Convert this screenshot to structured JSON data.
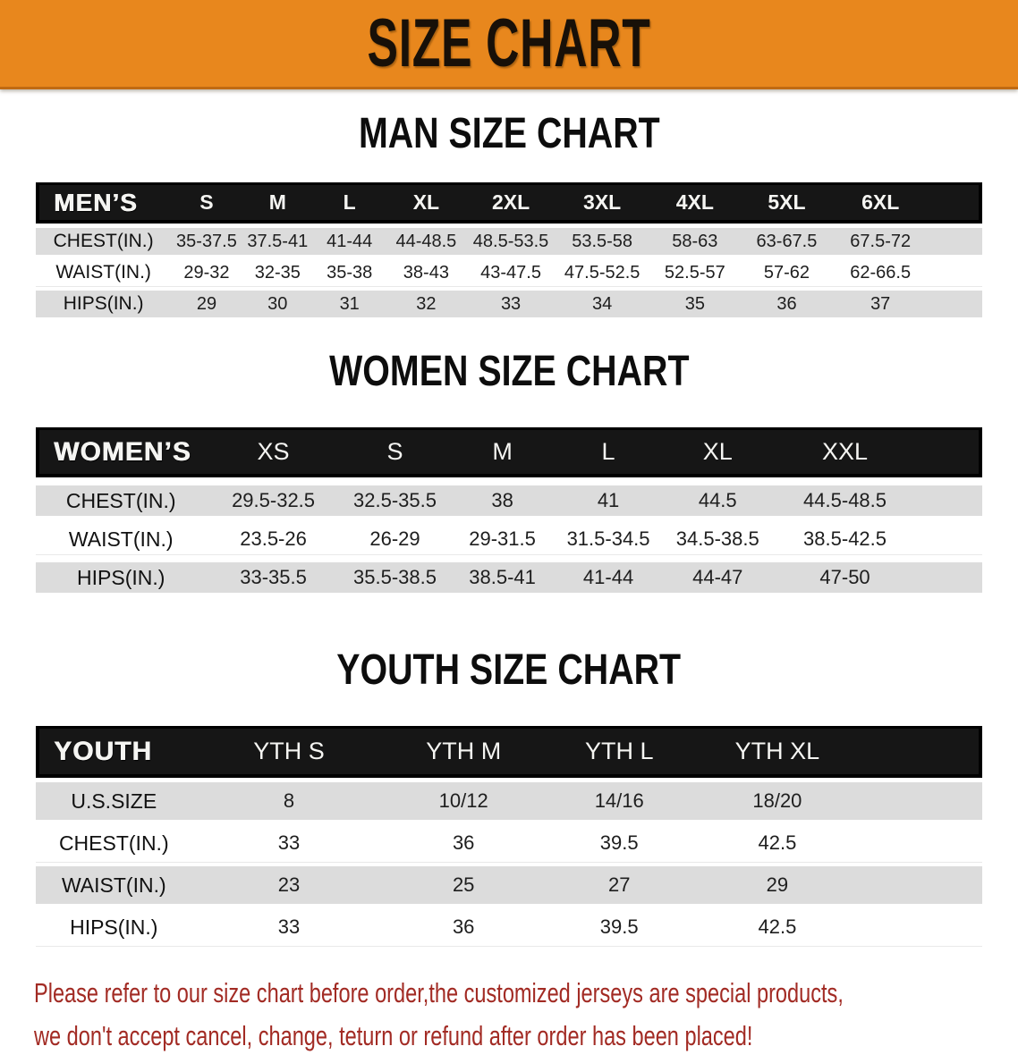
{
  "banner": {
    "title": "SIZE CHART"
  },
  "colors": {
    "banner_orange": "#e8871d",
    "header_black": "#161616",
    "row_gray": "#dcdcdc",
    "disclaimer_red": "#a22b24"
  },
  "sections": [
    {
      "title": "MAN SIZE CHART",
      "table": {
        "corner_label": "MEN’S",
        "columns": [
          "S",
          "M",
          "L",
          "XL",
          "2XL",
          "3XL",
          "4XL",
          "5XL",
          "6XL"
        ],
        "rows": [
          {
            "label": "CHEST(IN.)",
            "values": [
              "35-37.5",
              "37.5-41",
              "41-44",
              "44-48.5",
              "48.5-53.5",
              "53.5-58",
              "58-63",
              "63-67.5",
              "67.5-72"
            ]
          },
          {
            "label": "WAIST(IN.)",
            "values": [
              "29-32",
              "32-35",
              "35-38",
              "38-43",
              "43-47.5",
              "47.5-52.5",
              "52.5-57",
              "57-62",
              "62-66.5"
            ]
          },
          {
            "label": "HIPS(IN.)",
            "values": [
              "29",
              "30",
              "31",
              "32",
              "33",
              "34",
              "35",
              "36",
              "37"
            ]
          }
        ]
      }
    },
    {
      "title": "WOMEN SIZE CHART",
      "table": {
        "corner_label": "WOMEN’S",
        "columns": [
          "XS",
          "S",
          "M",
          "L",
          "XL",
          "XXL"
        ],
        "rows": [
          {
            "label": "CHEST(IN.)",
            "values": [
              "29.5-32.5",
              "32.5-35.5",
              "38",
              "41",
              "44.5",
              "44.5-48.5"
            ]
          },
          {
            "label": "WAIST(IN.)",
            "values": [
              "23.5-26",
              "26-29",
              "29-31.5",
              "31.5-34.5",
              "34.5-38.5",
              "38.5-42.5"
            ]
          },
          {
            "label": "HIPS(IN.)",
            "values": [
              "33-35.5",
              "35.5-38.5",
              "38.5-41",
              "41-44",
              "44-47",
              "47-50"
            ]
          }
        ]
      }
    },
    {
      "title": "YOUTH SIZE CHART",
      "table": {
        "corner_label": "YOUTH",
        "columns": [
          "YTH S",
          "YTH M",
          "YTH L",
          "YTH XL"
        ],
        "rows": [
          {
            "label": "U.S.SIZE",
            "values": [
              "8",
              "10/12",
              "14/16",
              "18/20"
            ]
          },
          {
            "label": "CHEST(IN.)",
            "values": [
              "33",
              "36",
              "39.5",
              "42.5"
            ]
          },
          {
            "label": "WAIST(IN.)",
            "values": [
              "23",
              "25",
              "27",
              "29"
            ]
          },
          {
            "label": "HIPS(IN.)",
            "values": [
              "33",
              "36",
              "39.5",
              "42.5"
            ]
          }
        ]
      }
    }
  ],
  "disclaimer": {
    "lines": [
      "Please refer to our size chart before order,the customized jerseys are special products,",
      "we don't accept cancel, change, teturn or refund after order has been placed!"
    ]
  }
}
